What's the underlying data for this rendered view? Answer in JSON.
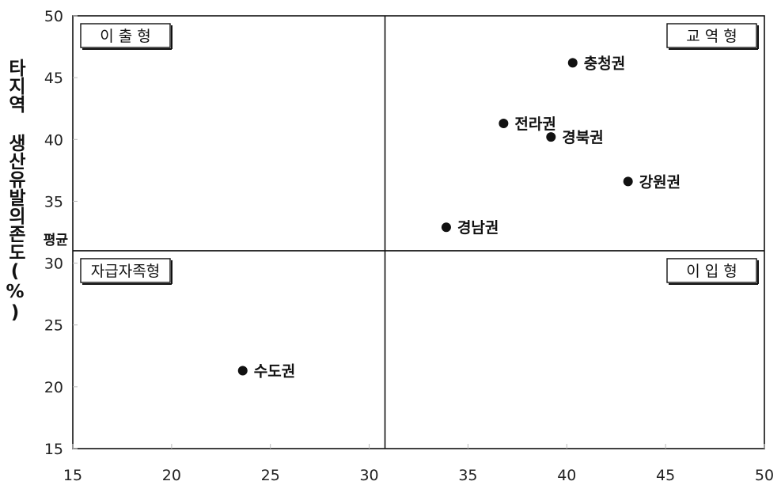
{
  "chart_data": {
    "type": "scatter",
    "xlim": [
      15,
      50
    ],
    "ylim": [
      15,
      50
    ],
    "x_ticks": [
      15,
      20,
      25,
      30,
      35,
      40,
      45,
      50
    ],
    "y_ticks": [
      15,
      20,
      25,
      30,
      35,
      40,
      45,
      50
    ],
    "ylabel": "타지역 생산유발의존도(%)",
    "xlabel": "",
    "grid": false,
    "average_line": {
      "x": 30.8,
      "y": 31.0,
      "label": "평균"
    },
    "quadrants": [
      {
        "name": "이 출 형",
        "position": "top-left"
      },
      {
        "name": "교 역 형",
        "position": "top-right"
      },
      {
        "name": "자급자족형",
        "position": "bottom-left"
      },
      {
        "name": "이 입 형",
        "position": "bottom-right"
      }
    ],
    "points": [
      {
        "label": "충청권",
        "x": 40.3,
        "y": 46.2
      },
      {
        "label": "전라권",
        "x": 36.8,
        "y": 41.3
      },
      {
        "label": "경북권",
        "x": 39.2,
        "y": 40.2
      },
      {
        "label": "강원권",
        "x": 43.1,
        "y": 36.6
      },
      {
        "label": "경남권",
        "x": 33.9,
        "y": 32.9
      },
      {
        "label": "수도권",
        "x": 23.6,
        "y": 21.3
      }
    ]
  }
}
